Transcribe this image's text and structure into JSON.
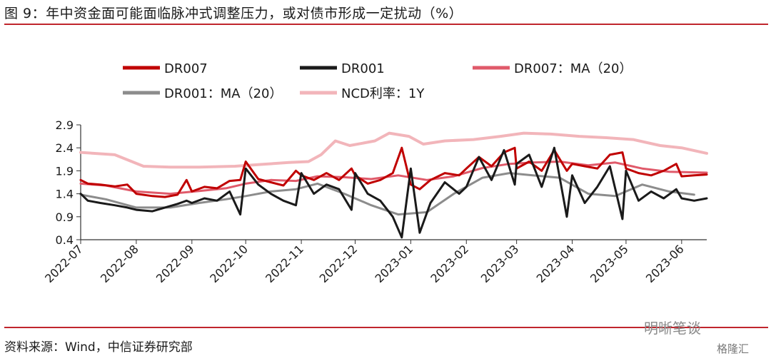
{
  "figure_title": "图 9：年中资金面可能面临脉冲式调整压力，或对债市形成一定扰动（%）",
  "source_note": "资料来源：Wind，中信证券研究部",
  "watermark_primary": "明晰笔谈",
  "watermark_secondary": "格隆汇",
  "chart_data": {
    "type": "line",
    "x_ticks": [
      "2022-07",
      "2022-08",
      "2022-09",
      "2022-10",
      "2022-11",
      "2022-12",
      "2023-01",
      "2023-02",
      "2023-03",
      "2023-04",
      "2023-05",
      "2023-06"
    ],
    "x_range": [
      "2022-07-01",
      "2023-06-15"
    ],
    "y_ticks": [
      2.9,
      2.4,
      1.9,
      1.4,
      0.9,
      0.4
    ],
    "ylim": [
      0.4,
      2.9
    ],
    "grid": false,
    "legend_position": "top",
    "series": [
      {
        "name": "DR007",
        "color": "#c00000",
        "width": 3,
        "points": [
          [
            "2022-07-01",
            1.7
          ],
          [
            "2022-07-05",
            1.62
          ],
          [
            "2022-07-12",
            1.6
          ],
          [
            "2022-07-20",
            1.56
          ],
          [
            "2022-07-27",
            1.6
          ],
          [
            "2022-08-01",
            1.4
          ],
          [
            "2022-08-10",
            1.35
          ],
          [
            "2022-08-17",
            1.33
          ],
          [
            "2022-08-24",
            1.38
          ],
          [
            "2022-08-29",
            1.7
          ],
          [
            "2022-09-01",
            1.45
          ],
          [
            "2022-09-08",
            1.55
          ],
          [
            "2022-09-15",
            1.52
          ],
          [
            "2022-09-22",
            1.68
          ],
          [
            "2022-09-28",
            1.7
          ],
          [
            "2022-10-01",
            2.1
          ],
          [
            "2022-10-08",
            1.72
          ],
          [
            "2022-10-15",
            1.65
          ],
          [
            "2022-10-22",
            1.58
          ],
          [
            "2022-10-29",
            1.9
          ],
          [
            "2022-11-01",
            1.8
          ],
          [
            "2022-11-08",
            1.7
          ],
          [
            "2022-11-15",
            1.85
          ],
          [
            "2022-11-22",
            1.7
          ],
          [
            "2022-11-29",
            1.95
          ],
          [
            "2022-12-01",
            1.8
          ],
          [
            "2022-12-08",
            1.62
          ],
          [
            "2022-12-15",
            1.7
          ],
          [
            "2022-12-22",
            1.85
          ],
          [
            "2022-12-27",
            2.4
          ],
          [
            "2023-01-01",
            1.6
          ],
          [
            "2023-01-06",
            1.5
          ],
          [
            "2023-01-12",
            1.7
          ],
          [
            "2023-01-20",
            1.85
          ],
          [
            "2023-01-28",
            1.8
          ],
          [
            "2023-02-01",
            1.95
          ],
          [
            "2023-02-08",
            2.2
          ],
          [
            "2023-02-15",
            2.0
          ],
          [
            "2023-02-22",
            2.3
          ],
          [
            "2023-02-28",
            2.4
          ],
          [
            "2023-03-01",
            1.95
          ],
          [
            "2023-03-08",
            2.1
          ],
          [
            "2023-03-15",
            1.9
          ],
          [
            "2023-03-22",
            2.35
          ],
          [
            "2023-03-29",
            1.9
          ],
          [
            "2023-04-01",
            2.05
          ],
          [
            "2023-04-08",
            2.0
          ],
          [
            "2023-04-15",
            1.95
          ],
          [
            "2023-04-22",
            2.25
          ],
          [
            "2023-04-29",
            2.3
          ],
          [
            "2023-05-01",
            1.95
          ],
          [
            "2023-05-08",
            1.85
          ],
          [
            "2023-05-15",
            1.8
          ],
          [
            "2023-05-22",
            1.9
          ],
          [
            "2023-05-29",
            2.05
          ],
          [
            "2023-06-01",
            1.78
          ],
          [
            "2023-06-08",
            1.8
          ],
          [
            "2023-06-15",
            1.82
          ]
        ]
      },
      {
        "name": "DR001",
        "color": "#1a1a1a",
        "width": 3,
        "points": [
          [
            "2022-07-01",
            1.4
          ],
          [
            "2022-07-05",
            1.25
          ],
          [
            "2022-07-12",
            1.2
          ],
          [
            "2022-07-20",
            1.15
          ],
          [
            "2022-07-27",
            1.1
          ],
          [
            "2022-08-01",
            1.05
          ],
          [
            "2022-08-10",
            1.02
          ],
          [
            "2022-08-17",
            1.1
          ],
          [
            "2022-08-24",
            1.18
          ],
          [
            "2022-08-29",
            1.25
          ],
          [
            "2022-09-01",
            1.2
          ],
          [
            "2022-09-08",
            1.3
          ],
          [
            "2022-09-15",
            1.25
          ],
          [
            "2022-09-22",
            1.45
          ],
          [
            "2022-09-28",
            0.95
          ],
          [
            "2022-10-01",
            1.95
          ],
          [
            "2022-10-08",
            1.6
          ],
          [
            "2022-10-15",
            1.4
          ],
          [
            "2022-10-22",
            1.25
          ],
          [
            "2022-10-29",
            1.15
          ],
          [
            "2022-11-01",
            1.85
          ],
          [
            "2022-11-08",
            1.4
          ],
          [
            "2022-11-15",
            1.6
          ],
          [
            "2022-11-22",
            1.5
          ],
          [
            "2022-11-29",
            1.05
          ],
          [
            "2022-12-01",
            1.85
          ],
          [
            "2022-12-08",
            1.4
          ],
          [
            "2022-12-15",
            1.25
          ],
          [
            "2022-12-22",
            0.9
          ],
          [
            "2022-12-27",
            0.45
          ],
          [
            "2023-01-01",
            1.95
          ],
          [
            "2023-01-06",
            0.55
          ],
          [
            "2023-01-12",
            1.2
          ],
          [
            "2023-01-20",
            1.65
          ],
          [
            "2023-01-28",
            1.4
          ],
          [
            "2023-02-01",
            1.55
          ],
          [
            "2023-02-08",
            2.2
          ],
          [
            "2023-02-15",
            1.7
          ],
          [
            "2023-02-22",
            2.35
          ],
          [
            "2023-02-28",
            1.6
          ],
          [
            "2023-03-01",
            2.05
          ],
          [
            "2023-03-08",
            2.25
          ],
          [
            "2023-03-15",
            1.55
          ],
          [
            "2023-03-22",
            2.4
          ],
          [
            "2023-03-29",
            0.9
          ],
          [
            "2023-04-01",
            1.8
          ],
          [
            "2023-04-08",
            1.2
          ],
          [
            "2023-04-15",
            1.55
          ],
          [
            "2023-04-22",
            2.0
          ],
          [
            "2023-04-29",
            0.85
          ],
          [
            "2023-05-01",
            1.9
          ],
          [
            "2023-05-08",
            1.25
          ],
          [
            "2023-05-15",
            1.45
          ],
          [
            "2023-05-22",
            1.3
          ],
          [
            "2023-05-29",
            1.5
          ],
          [
            "2023-06-01",
            1.3
          ],
          [
            "2023-06-08",
            1.25
          ],
          [
            "2023-06-15",
            1.3
          ]
        ]
      },
      {
        "name": "DR007：MA（20）",
        "color": "#e05a6a",
        "width": 3,
        "points": [
          [
            "2022-07-01",
            1.62
          ],
          [
            "2022-07-15",
            1.58
          ],
          [
            "2022-08-01",
            1.45
          ],
          [
            "2022-08-20",
            1.4
          ],
          [
            "2022-09-05",
            1.46
          ],
          [
            "2022-09-20",
            1.52
          ],
          [
            "2022-10-01",
            1.62
          ],
          [
            "2022-10-15",
            1.7
          ],
          [
            "2022-10-29",
            1.68
          ],
          [
            "2022-11-10",
            1.78
          ],
          [
            "2022-11-25",
            1.76
          ],
          [
            "2022-12-10",
            1.72
          ],
          [
            "2022-12-25",
            1.8
          ],
          [
            "2023-01-10",
            1.7
          ],
          [
            "2023-01-25",
            1.78
          ],
          [
            "2023-02-10",
            1.96
          ],
          [
            "2023-02-25",
            2.05
          ],
          [
            "2023-03-10",
            2.08
          ],
          [
            "2023-03-25",
            2.1
          ],
          [
            "2023-04-10",
            2.02
          ],
          [
            "2023-04-25",
            2.08
          ],
          [
            "2023-05-10",
            1.95
          ],
          [
            "2023-05-25",
            1.88
          ],
          [
            "2023-06-15",
            1.86
          ]
        ]
      },
      {
        "name": "DR001：MA（20）",
        "color": "#8c8c8c",
        "width": 3,
        "points": [
          [
            "2022-07-01",
            1.38
          ],
          [
            "2022-07-15",
            1.28
          ],
          [
            "2022-08-01",
            1.1
          ],
          [
            "2022-08-20",
            1.1
          ],
          [
            "2022-09-05",
            1.2
          ],
          [
            "2022-09-20",
            1.28
          ],
          [
            "2022-10-01",
            1.35
          ],
          [
            "2022-10-15",
            1.45
          ],
          [
            "2022-10-29",
            1.5
          ],
          [
            "2022-11-10",
            1.62
          ],
          [
            "2022-11-25",
            1.4
          ],
          [
            "2022-12-10",
            1.15
          ],
          [
            "2022-12-25",
            0.95
          ],
          [
            "2023-01-10",
            1.0
          ],
          [
            "2023-01-25",
            1.4
          ],
          [
            "2023-02-10",
            1.75
          ],
          [
            "2023-02-25",
            1.85
          ],
          [
            "2023-03-10",
            1.8
          ],
          [
            "2023-03-25",
            1.75
          ],
          [
            "2023-04-10",
            1.4
          ],
          [
            "2023-04-25",
            1.35
          ],
          [
            "2023-05-10",
            1.6
          ],
          [
            "2023-05-25",
            1.45
          ],
          [
            "2023-06-08",
            1.38
          ]
        ]
      },
      {
        "name": "NCD利率：1Y",
        "color": "#f2b5ba",
        "width": 4,
        "points": [
          [
            "2022-07-01",
            2.3
          ],
          [
            "2022-07-20",
            2.25
          ],
          [
            "2022-08-05",
            2.0
          ],
          [
            "2022-08-20",
            1.98
          ],
          [
            "2022-09-05",
            1.98
          ],
          [
            "2022-09-25",
            2.0
          ],
          [
            "2022-10-10",
            2.04
          ],
          [
            "2022-10-25",
            2.08
          ],
          [
            "2022-11-05",
            2.1
          ],
          [
            "2022-11-12",
            2.25
          ],
          [
            "2022-11-20",
            2.55
          ],
          [
            "2022-11-28",
            2.45
          ],
          [
            "2022-12-05",
            2.5
          ],
          [
            "2022-12-12",
            2.55
          ],
          [
            "2022-12-20",
            2.72
          ],
          [
            "2022-12-31",
            2.65
          ],
          [
            "2023-01-08",
            2.48
          ],
          [
            "2023-01-20",
            2.55
          ],
          [
            "2023-02-05",
            2.58
          ],
          [
            "2023-02-20",
            2.65
          ],
          [
            "2023-03-05",
            2.72
          ],
          [
            "2023-03-20",
            2.7
          ],
          [
            "2023-04-05",
            2.65
          ],
          [
            "2023-04-20",
            2.62
          ],
          [
            "2023-05-05",
            2.58
          ],
          [
            "2023-05-20",
            2.45
          ],
          [
            "2023-06-01",
            2.4
          ],
          [
            "2023-06-15",
            2.28
          ]
        ]
      }
    ]
  }
}
